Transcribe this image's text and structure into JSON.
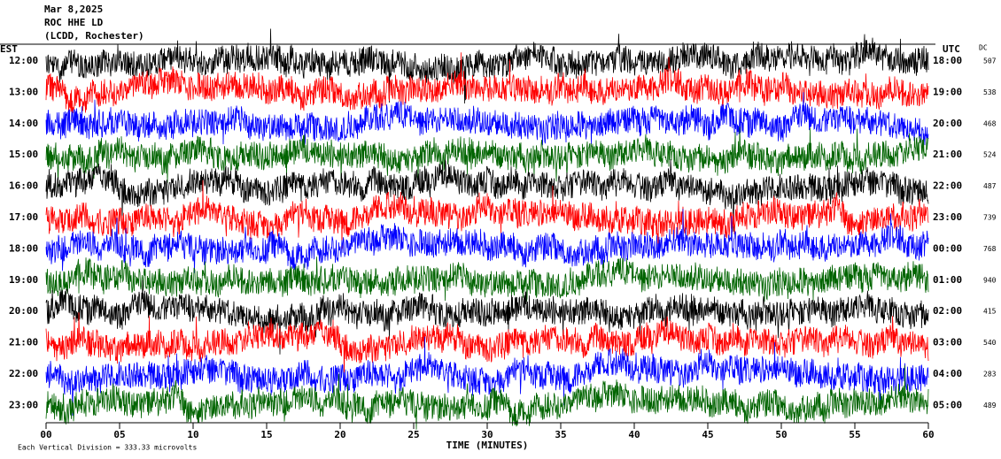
{
  "chart_data": {
    "type": "helicorder",
    "title_lines": [
      "Mar 8,2025",
      "ROC HHE LD",
      "(LCDD, Rochester)"
    ],
    "left_zone": "EST",
    "right_zone": "UTC",
    "dc_header": "DC",
    "rows": [
      {
        "est": "12:00",
        "utc": "18:00",
        "dc": 507,
        "color": "#000000"
      },
      {
        "est": "13:00",
        "utc": "19:00",
        "dc": 538,
        "color": "#ff0000"
      },
      {
        "est": "14:00",
        "utc": "20:00",
        "dc": 468,
        "color": "#0000ff"
      },
      {
        "est": "15:00",
        "utc": "21:00",
        "dc": 524,
        "color": "#006400"
      },
      {
        "est": "16:00",
        "utc": "22:00",
        "dc": 487,
        "color": "#000000"
      },
      {
        "est": "17:00",
        "utc": "23:00",
        "dc": 739,
        "color": "#ff0000"
      },
      {
        "est": "18:00",
        "utc": "00:00",
        "dc": 768,
        "color": "#0000ff"
      },
      {
        "est": "19:00",
        "utc": "01:00",
        "dc": 940,
        "color": "#006400"
      },
      {
        "est": "20:00",
        "utc": "02:00",
        "dc": 415,
        "color": "#000000"
      },
      {
        "est": "21:00",
        "utc": "03:00",
        "dc": 540,
        "color": "#ff0000"
      },
      {
        "est": "22:00",
        "utc": "04:00",
        "dc": 283,
        "color": "#0000ff"
      },
      {
        "est": "23:00",
        "utc": "05:00",
        "dc": 489,
        "color": "#006400"
      }
    ],
    "xlabel": "TIME (MINUTES)",
    "xlim": [
      0,
      60
    ],
    "xticks": [
      {
        "value": 0,
        "label": "00"
      },
      {
        "value": 5,
        "label": "05"
      },
      10,
      15,
      20,
      25,
      30,
      35,
      40,
      45,
      50,
      55,
      60
    ],
    "footer": "Each Vertical Division =  333.33 microvolts"
  }
}
